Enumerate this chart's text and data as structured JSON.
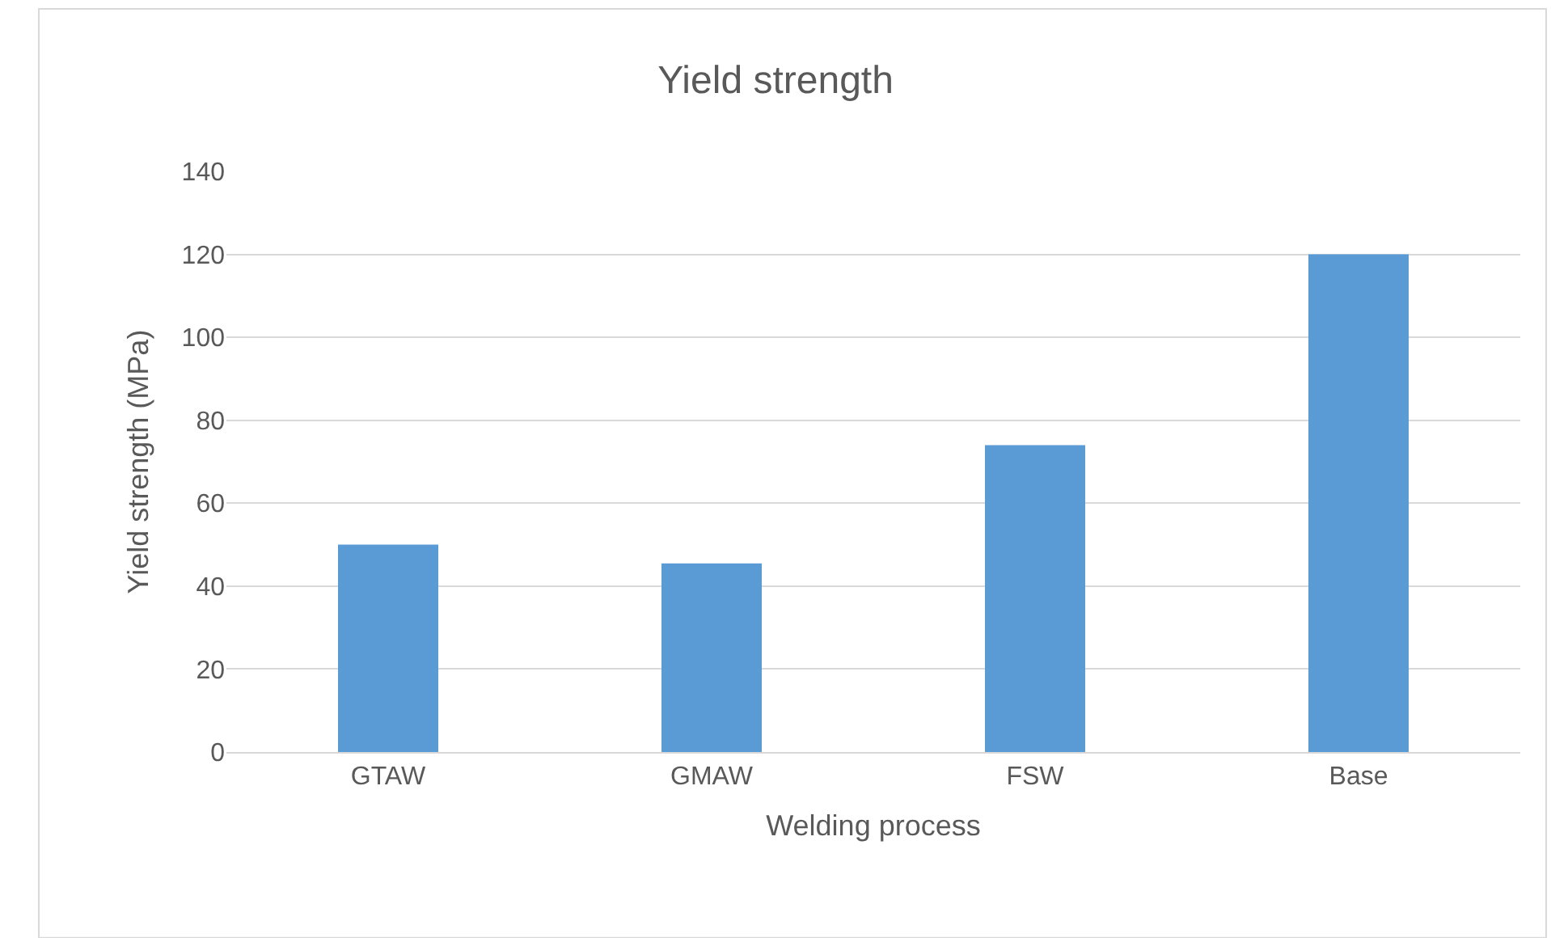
{
  "chart_data": {
    "type": "bar",
    "title": "Yield strength",
    "xlabel": "Welding process",
    "ylabel": "Yield strength (MPa)",
    "categories": [
      "GTAW",
      "GMAW",
      "FSW",
      "Base"
    ],
    "values": [
      50,
      45.5,
      74,
      120
    ],
    "color": "#5b9bd5",
    "ylim": [
      0,
      140
    ],
    "yticks": [
      0,
      20,
      40,
      60,
      80,
      100,
      120,
      140
    ],
    "grid": "y"
  }
}
